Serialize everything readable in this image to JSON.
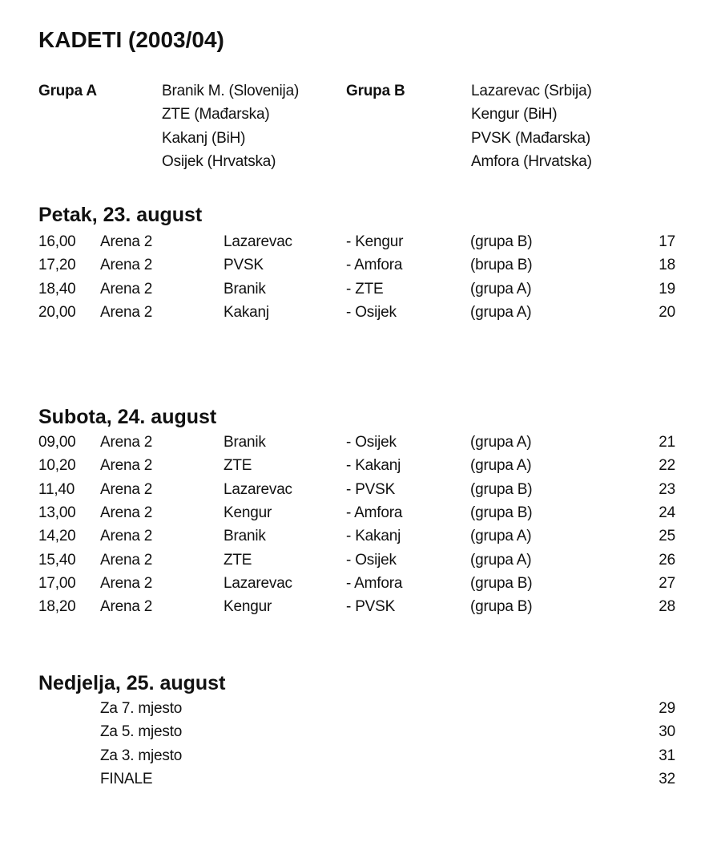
{
  "title": "KADETI (2003/04)",
  "groups": [
    {
      "label": "Grupa A",
      "teams": [
        "Branik M. (Slovenija)",
        "ZTE (Mađarska)",
        "Kakanj (BiH)",
        "Osijek (Hrvatska)"
      ]
    },
    {
      "label": "Grupa B",
      "teams": [
        "Lazarevac (Srbija)",
        "Kengur (BiH)",
        "PVSK (Mađarska)",
        "Amfora (Hrvatska)"
      ]
    }
  ],
  "days": [
    {
      "heading": "Petak, 23. august",
      "matches": [
        {
          "time": "16,00",
          "venue": "Arena 2",
          "home": "Lazarevac",
          "away": "- Kengur",
          "group": "(grupa B)",
          "no": "17"
        },
        {
          "time": "17,20",
          "venue": "Arena 2",
          "home": "PVSK",
          "away": "- Amfora",
          "group": "(brupa B)",
          "no": "18"
        },
        {
          "time": "18,40",
          "venue": "Arena 2",
          "home": "Branik",
          "away": "- ZTE",
          "group": "(grupa A)",
          "no": "19"
        },
        {
          "time": "20,00",
          "venue": "Arena 2",
          "home": "Kakanj",
          "away": "- Osijek",
          "group": "(grupa A)",
          "no": "20"
        }
      ]
    },
    {
      "heading": "Subota, 24. august",
      "matches": [
        {
          "time": "09,00",
          "venue": "Arena 2",
          "home": "Branik",
          "away": "- Osijek",
          "group": "(grupa A)",
          "no": "21"
        },
        {
          "time": "10,20",
          "venue": "Arena 2",
          "home": "ZTE",
          "away": "- Kakanj",
          "group": "(grupa A)",
          "no": "22"
        },
        {
          "time": "11,40",
          "venue": "Arena 2",
          "home": "Lazarevac",
          "away": "- PVSK",
          "group": "(grupa B)",
          "no": "23"
        },
        {
          "time": "13,00",
          "venue": "Arena 2",
          "home": "Kengur",
          "away": "- Amfora",
          "group": "(grupa B)",
          "no": "24"
        },
        {
          "time": "14,20",
          "venue": "Arena 2",
          "home": "Branik",
          "away": "- Kakanj",
          "group": "(grupa A)",
          "no": "25"
        },
        {
          "time": "15,40",
          "venue": "Arena 2",
          "home": "ZTE",
          "away": "- Osijek",
          "group": "(grupa A)",
          "no": "26"
        },
        {
          "time": "17,00",
          "venue": "Arena 2",
          "home": "Lazarevac",
          "away": "- Amfora",
          "group": "(grupa B)",
          "no": "27"
        },
        {
          "time": "18,20",
          "venue": "Arena 2",
          "home": "Kengur",
          "away": "- PVSK",
          "group": "(grupa B)",
          "no": "28"
        }
      ]
    },
    {
      "heading": "Nedjelja, 25. august",
      "matches": [
        {
          "label": "Za 7. mjesto",
          "no": "29"
        },
        {
          "label": "Za 5. mjesto",
          "no": "30"
        },
        {
          "label": "Za 3. mjesto",
          "no": "31"
        },
        {
          "label": "FINALE",
          "no": "32"
        }
      ]
    }
  ]
}
